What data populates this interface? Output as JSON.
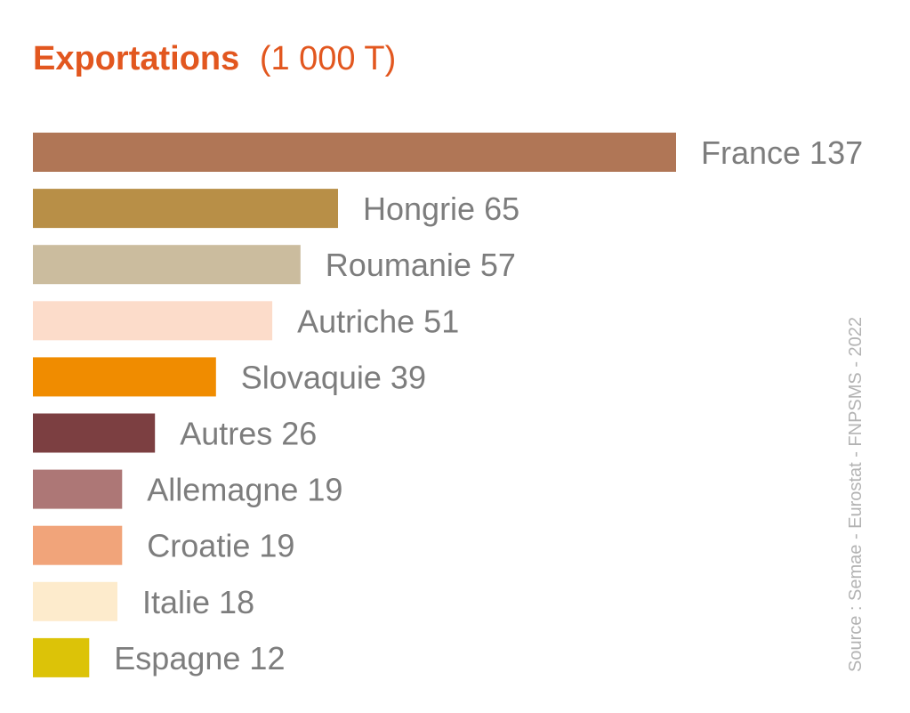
{
  "chart_data": {
    "type": "bar",
    "orientation": "horizontal",
    "title": "Exportations",
    "title_unit": "(1 000 T)",
    "title_color": "#e2571f",
    "categories": [
      "France",
      "Hongrie",
      "Roumanie",
      "Autriche",
      "Slovaquie",
      "Autres",
      "Allemagne",
      "Croatie",
      "Italie",
      "Espagne"
    ],
    "values": [
      137,
      65,
      57,
      51,
      39,
      26,
      19,
      19,
      18,
      12
    ],
    "colors": [
      "#b07656",
      "#b88f47",
      "#cbbc9e",
      "#fcdcca",
      "#f08c00",
      "#7c3f41",
      "#ad7776",
      "#f1a47a",
      "#fdebcc",
      "#dcc308"
    ],
    "xlim": [
      0,
      137
    ],
    "grid": false,
    "legend": "none",
    "source": "Source : Semae - Eurostat - FNPSMS - 2022"
  }
}
